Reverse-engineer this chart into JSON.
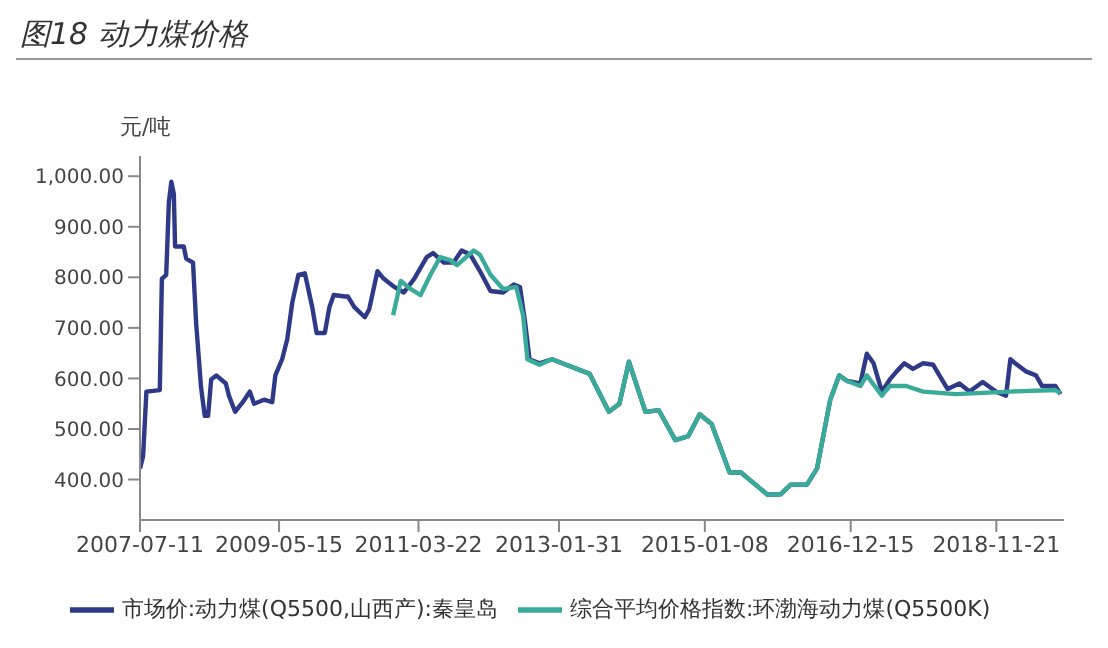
{
  "chart_data": {
    "type": "line",
    "title": "图18 动力煤价格",
    "ylabel": "元/吨",
    "xlim": [
      "2007-07-11",
      "2019-10-15"
    ],
    "xticks": [
      "2007-07-11",
      "2009-05-15",
      "2011-03-22",
      "2013-01-31",
      "2015-01-08",
      "2016-12-15",
      "2018-11-21"
    ],
    "ylim": [
      320,
      1040
    ],
    "yticks": [
      {
        "value": 400,
        "label": "400.00"
      },
      {
        "value": 500,
        "label": "500.00"
      },
      {
        "value": 600,
        "label": "600.00"
      },
      {
        "value": 700,
        "label": "700.00"
      },
      {
        "value": 800,
        "label": "800.00"
      },
      {
        "value": 900,
        "label": "900.00"
      },
      {
        "value": 1000,
        "label": "1,000.00"
      }
    ],
    "legend": "bottom",
    "marker": "none",
    "line_style": "solid",
    "series": [
      {
        "name": "市场价:动力煤(Q5500,山西产):秦皇岛",
        "color": "#2e3a87",
        "x": [
          "2007-07-11",
          "2007-07-26",
          "2007-08-11",
          "2007-10-15",
          "2007-10-25",
          "2007-11-15",
          "2007-11-28",
          "2007-12-10",
          "2007-12-22",
          "2007-12-28",
          "2008-02-08",
          "2008-02-20",
          "2008-03-24",
          "2008-04-08",
          "2008-05-02",
          "2008-05-20",
          "2008-06-05",
          "2008-06-20",
          "2008-07-15",
          "2008-08-30",
          "2008-09-14",
          "2008-10-14",
          "2008-11-20",
          "2008-12-24",
          "2009-01-14",
          "2009-03-03",
          "2009-04-12",
          "2009-04-27",
          "2009-05-30",
          "2009-06-24",
          "2009-07-18",
          "2009-08-17",
          "2009-09-17",
          "2009-10-23",
          "2009-11-13",
          "2009-12-23",
          "2010-01-14",
          "2010-02-04",
          "2010-03-30",
          "2010-04-14",
          "2010-05-15",
          "2010-07-05",
          "2010-07-26",
          "2010-09-04",
          "2010-10-05",
          "2010-11-25",
          "2011-01-10",
          "2011-03-01",
          "2011-05-01",
          "2011-06-01",
          "2011-07-23",
          "2011-09-07",
          "2011-10-17",
          "2011-11-28",
          "2012-01-13",
          "2012-03-05",
          "2012-05-05",
          "2012-06-26",
          "2012-07-26",
          "2012-08-20",
          "2012-09-10",
          "2012-10-28",
          "2012-12-28",
          "2013-06-29",
          "2013-09-30",
          "2013-11-20",
          "2014-01-05",
          "2014-03-26",
          "2014-05-30",
          "2014-08-18",
          "2014-10-20",
          "2014-12-14",
          "2015-02-10",
          "2015-05-08",
          "2015-07-02",
          "2015-11-08",
          "2016-01-11",
          "2016-02-28",
          "2016-05-17",
          "2016-07-05",
          "2016-09-07",
          "2016-10-20",
          "2016-11-28",
          "2017-01-31",
          "2017-03-03",
          "2017-04-05",
          "2017-05-15",
          "2017-06-23",
          "2017-07-26",
          "2017-09-01",
          "2017-10-13",
          "2017-12-01",
          "2018-01-19",
          "2018-02-18",
          "2018-03-30",
          "2018-05-26",
          "2018-07-14",
          "2018-09-16",
          "2018-11-19",
          "2019-01-07",
          "2019-01-28",
          "2019-03-02",
          "2019-04-13",
          "2019-06-01",
          "2019-07-01",
          "2019-09-03",
          "2019-09-28"
        ],
        "values": [
          422,
          446,
          574,
          577,
          797,
          805,
          949,
          989,
          965,
          861,
          861,
          837,
          829,
          710,
          582,
          526,
          526,
          598,
          606,
          590,
          566,
          534,
          553,
          574,
          550,
          558,
          553,
          606,
          638,
          678,
          750,
          805,
          808,
          741,
          690,
          690,
          741,
          765,
          762,
          762,
          741,
          721,
          737,
          812,
          797,
          781,
          770,
          797,
          840,
          848,
          829,
          829,
          853,
          845,
          813,
          773,
          770,
          786,
          781,
          710,
          638,
          630,
          638,
          609,
          534,
          550,
          633,
          534,
          537,
          478,
          486,
          529,
          510,
          414,
          414,
          370,
          371,
          390,
          390,
          422,
          558,
          606,
          595,
          590,
          649,
          630,
          574,
          598,
          614,
          630,
          619,
          630,
          627,
          606,
          579,
          590,
          574,
          593,
          574,
          566,
          638,
          627,
          614,
          606,
          585,
          585,
          569
        ]
      },
      {
        "name": "综合平均价格指数:环渤海动力煤(Q5500K)",
        "color": "#3aab9a",
        "x": [
          "2010-11-19",
          "2010-12-26",
          "2011-02-11",
          "2011-04-01",
          "2011-05-19",
          "2011-07-05",
          "2011-08-22",
          "2011-09-25",
          "2011-12-14",
          "2012-01-13",
          "2012-03-05",
          "2012-05-05",
          "2012-07-08",
          "2012-08-10",
          "2012-08-31",
          "2012-10-28",
          "2012-12-28",
          "2013-06-29",
          "2013-09-30",
          "2013-11-20",
          "2014-01-05",
          "2014-03-26",
          "2014-05-30",
          "2014-08-18",
          "2014-10-20",
          "2014-12-14",
          "2015-02-10",
          "2015-05-08",
          "2015-07-02",
          "2015-11-08",
          "2016-01-11",
          "2016-02-28",
          "2016-05-17",
          "2016-07-05",
          "2016-09-07",
          "2016-10-20",
          "2016-11-28",
          "2017-01-31",
          "2017-03-03",
          "2017-05-15",
          "2017-06-23",
          "2017-09-10",
          "2017-12-01",
          "2018-05-10",
          "2019-01-22",
          "2019-09-03",
          "2019-09-28"
        ],
        "values": [
          725,
          793,
          777,
          765,
          805,
          840,
          834,
          824,
          853,
          845,
          805,
          777,
          781,
          725,
          638,
          627,
          638,
          609,
          534,
          550,
          633,
          534,
          537,
          478,
          486,
          529,
          510,
          414,
          414,
          370,
          371,
          390,
          390,
          422,
          558,
          606,
          595,
          585,
          606,
          566,
          585,
          585,
          574,
          569,
          574,
          577,
          571
        ]
      }
    ]
  }
}
